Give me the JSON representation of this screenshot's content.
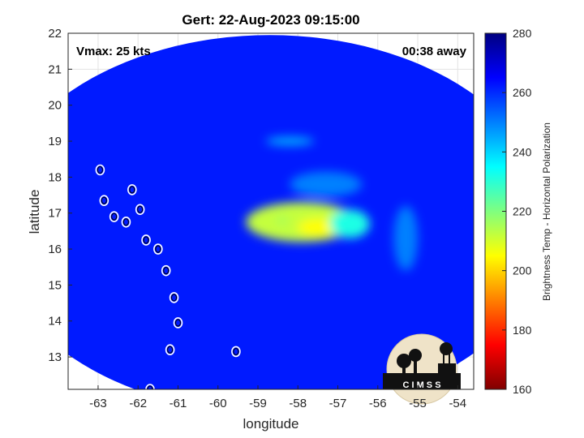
{
  "chart_data": {
    "type": "heatmap",
    "title": "Gert: 22-Aug-2023 09:15:00",
    "xlabel": "longitude",
    "ylabel": "latitude",
    "xlim": [
      -63.75,
      -53.6
    ],
    "ylim": [
      12.1,
      22
    ],
    "x_ticks": [
      -63,
      -62,
      -61,
      -60,
      -59,
      -58,
      -57,
      -56,
      -55,
      -54
    ],
    "y_ticks": [
      13,
      14,
      15,
      16,
      17,
      18,
      19,
      20,
      21,
      22
    ],
    "grid": true,
    "annotations": {
      "vmax": "Vmax: 25 kts",
      "away": "00:38 away"
    },
    "colorbar": {
      "label": "Brightness Temp - Horizontal Polarization",
      "range": [
        160,
        280
      ],
      "ticks": [
        160,
        180,
        200,
        220,
        240,
        260,
        280
      ],
      "colormap": "jet"
    },
    "swath": {
      "center": [
        -58.7,
        16.7
      ],
      "half_width_deg": 7.0,
      "half_height_deg": 5.25,
      "background_value": 262
    },
    "features": [
      {
        "center": [
          -57.9,
          16.75
        ],
        "radius": [
          1.4,
          0.55
        ],
        "value": 212
      },
      {
        "center": [
          -57.5,
          16.6
        ],
        "radius": [
          0.5,
          0.25
        ],
        "value": 205
      },
      {
        "center": [
          -58.4,
          16.8
        ],
        "radius": [
          0.15,
          0.15
        ],
        "value": 215
      },
      {
        "center": [
          -56.7,
          16.7
        ],
        "radius": [
          0.5,
          0.4
        ],
        "value": 232
      },
      {
        "center": [
          -58.2,
          19.0
        ],
        "radius": [
          0.6,
          0.12
        ],
        "value": 244
      },
      {
        "center": [
          -57.3,
          17.8
        ],
        "radius": [
          0.9,
          0.35
        ],
        "value": 250
      },
      {
        "center": [
          -55.3,
          16.3
        ],
        "radius": [
          0.3,
          0.9
        ],
        "value": 250
      }
    ],
    "islands": [
      [
        -62.95,
        18.2
      ],
      [
        -62.85,
        17.35
      ],
      [
        -62.6,
        16.9
      ],
      [
        -62.15,
        17.65
      ],
      [
        -61.95,
        17.1
      ],
      [
        -61.8,
        16.25
      ],
      [
        -61.3,
        15.4
      ],
      [
        -61.1,
        14.65
      ],
      [
        -61.0,
        13.95
      ],
      [
        -61.2,
        13.2
      ],
      [
        -59.55,
        13.15
      ],
      [
        -61.7,
        12.1
      ],
      [
        -61.5,
        16.0
      ],
      [
        -62.3,
        16.75
      ]
    ],
    "logo_text": "C I M S S"
  }
}
